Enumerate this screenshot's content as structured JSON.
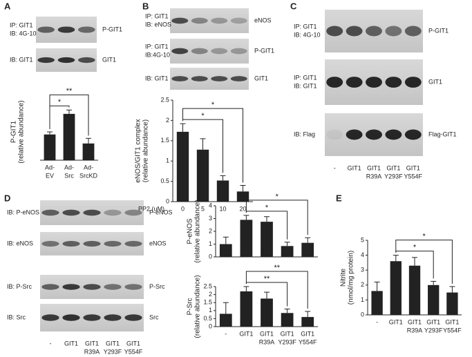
{
  "panels": [
    "A",
    "B",
    "C",
    "D",
    "E"
  ],
  "blots": [
    {
      "left": [
        "IP: GIT1",
        "IB: 4G-10"
      ],
      "right": "P-GIT1"
    },
    {
      "left": [
        "IB: GIT1"
      ],
      "right": "GIT1"
    },
    {
      "left": [
        "IP: GIT1",
        "IB: eNOS"
      ],
      "right": "eNOS"
    },
    {
      "left": [
        "IP: GIT1",
        "IB:4G-10"
      ],
      "right": "P-GIT1"
    },
    {
      "left": [
        "IB: GIT1"
      ],
      "right": "GIT1"
    },
    {
      "left": [
        "IP: GIT1",
        "IB: 4G-10"
      ],
      "right": "P-GIT1"
    },
    {
      "left": [
        "IP: GIT1",
        "IB: GIT1"
      ],
      "right": "GIT1"
    },
    {
      "left": [
        "IB: Flag"
      ],
      "right": "Flag-GIT1"
    },
    {
      "left": [
        "IB: P-eNOS"
      ],
      "right": "P-eNOS"
    },
    {
      "left": [
        "IB: eNOS"
      ],
      "right": "eNOS"
    },
    {
      "left": [
        "IB: P-Src"
      ],
      "right": "P-Src"
    },
    {
      "left": [
        "IB: Src"
      ],
      "right": "Src"
    }
  ],
  "lane_labels": {
    "C": [
      [
        "-"
      ],
      [
        "GIT1"
      ],
      [
        "GIT1",
        "R39A"
      ],
      [
        "GIT1",
        "Y293F"
      ],
      [
        "GIT1",
        "Y554F"
      ]
    ],
    "D": [
      [
        "-"
      ],
      [
        "GIT1"
      ],
      [
        "GIT1",
        "R39A"
      ],
      [
        "GIT1",
        "Y293F"
      ],
      [
        "GIT1",
        "Y554F"
      ]
    ]
  },
  "chart_data": [
    {
      "type": "bar",
      "y_label": [
        "P-GIT1",
        "(relative abundance)"
      ],
      "categories": [
        [
          "Ad-",
          "EV"
        ],
        [
          "Ad-",
          "Src"
        ],
        [
          "Ad-",
          "SrcKD"
        ]
      ],
      "values": [
        1.0,
        1.8,
        0.65
      ],
      "errors": [
        0.1,
        0.15,
        0.2
      ],
      "color": "#222222",
      "ylim": [
        0,
        2.2
      ],
      "significance": [
        {
          "from": 0,
          "to": 1,
          "label": "*"
        },
        {
          "from": 0,
          "to": 2,
          "label": "**"
        }
      ]
    },
    {
      "type": "bar",
      "y_label": [
        "eNOS/GIT1 complex",
        "(relative abundance)"
      ],
      "x_label": "PP2 (uM)",
      "categories": [
        [
          "0"
        ],
        [
          "5"
        ],
        [
          "10"
        ],
        [
          "20"
        ]
      ],
      "values": [
        1.72,
        1.28,
        0.52,
        0.25
      ],
      "errors": [
        0.2,
        0.27,
        0.12,
        0.15
      ],
      "color": "#222222",
      "ylim": [
        0,
        2.5
      ],
      "yticks": [
        0,
        0.5,
        1,
        1.5,
        2,
        2.5
      ],
      "significance": [
        {
          "from": 0,
          "to": 2,
          "label": "*"
        },
        {
          "from": 0,
          "to": 3,
          "label": "*"
        }
      ]
    },
    {
      "type": "bar",
      "y_label": [
        "P-eNOS",
        "(relative abundance)"
      ],
      "values": [
        1.0,
        2.9,
        2.75,
        0.85,
        1.1
      ],
      "errors": [
        0.55,
        0.35,
        0.4,
        0.3,
        0.4
      ],
      "color": "#222222",
      "ylim": [
        0,
        4
      ],
      "yticks": [
        0,
        1,
        2,
        3,
        4
      ],
      "significance": [
        {
          "from": 1,
          "to": 3,
          "label": "*"
        },
        {
          "from": 1,
          "to": 4,
          "label": "*"
        }
      ]
    },
    {
      "type": "bar",
      "y_label": [
        "P-Src",
        "(relative abundance)"
      ],
      "categories": [
        [
          "-"
        ],
        [
          "GIT1"
        ],
        [
          "GIT1",
          "R39A"
        ],
        [
          "GIT1",
          "Y293F"
        ],
        [
          "GIT1",
          "Y554F"
        ]
      ],
      "values": [
        0.8,
        2.2,
        1.75,
        0.85,
        0.6
      ],
      "errors": [
        0.7,
        0.3,
        0.4,
        0.25,
        0.35
      ],
      "color": "#222222",
      "ylim": [
        0,
        2.5
      ],
      "yticks": [
        0,
        0.5,
        1,
        1.5,
        2,
        2.5
      ],
      "significance": [
        {
          "from": 1,
          "to": 3,
          "label": "**"
        },
        {
          "from": 1,
          "to": 4,
          "label": "**"
        }
      ]
    },
    {
      "type": "bar",
      "y_label": [
        "Nitrite",
        "(nmol/mg protein)"
      ],
      "categories": [
        [
          "-"
        ],
        [
          "GIT1"
        ],
        [
          "GIT1",
          "R39A"
        ],
        [
          "GIT1",
          "Y293F"
        ],
        [
          "GIT1",
          "Y554F"
        ]
      ],
      "values": [
        1.6,
        3.6,
        3.3,
        2.0,
        1.5
      ],
      "errors": [
        0.6,
        0.4,
        0.55,
        0.25,
        0.4
      ],
      "color": "#222222",
      "ylim": [
        0,
        5
      ],
      "yticks": [
        0,
        1,
        2,
        3,
        4,
        5
      ],
      "significance": [
        {
          "from": 1,
          "to": 3,
          "label": "*"
        },
        {
          "from": 1,
          "to": 4,
          "label": "*"
        }
      ]
    }
  ]
}
